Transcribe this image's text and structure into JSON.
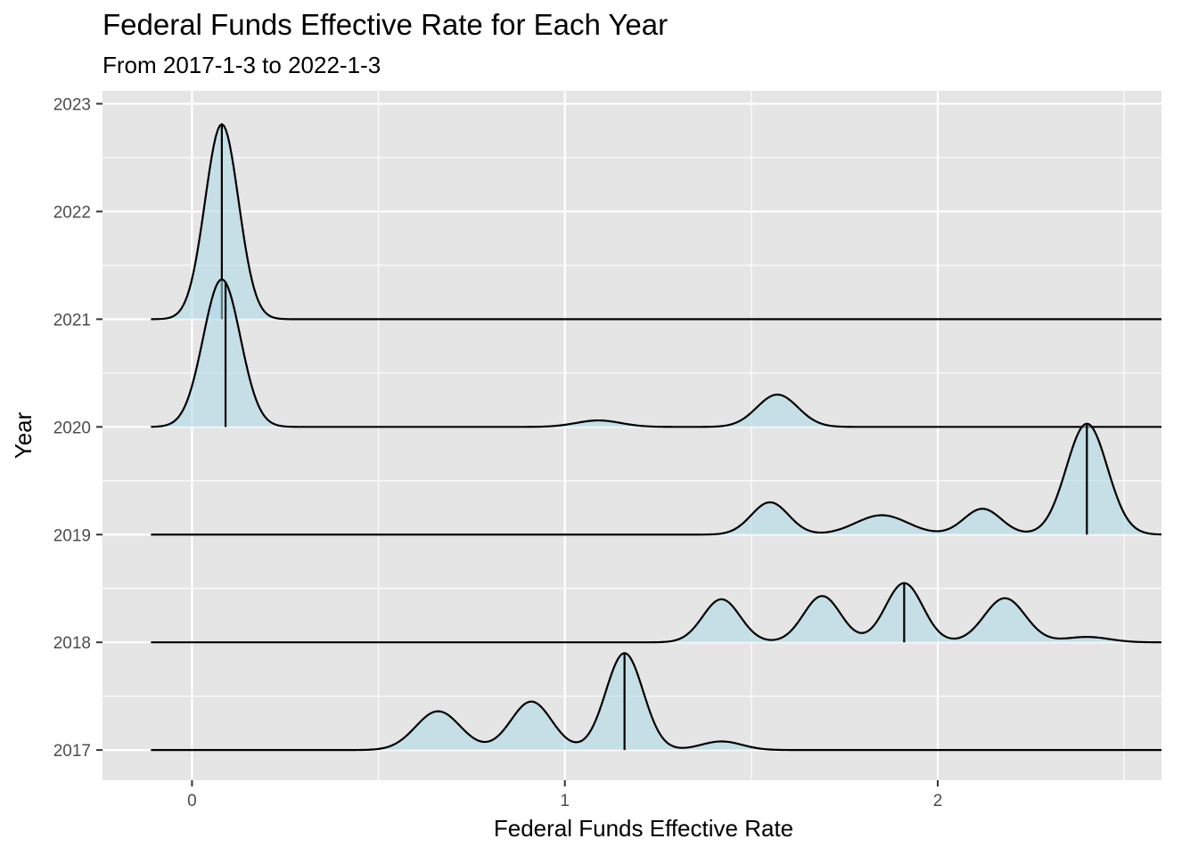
{
  "chart_data": {
    "type": "ridgeline",
    "title": "Federal Funds Effective Rate for Each Year",
    "subtitle": "From 2017-1-3 to 2022-1-3",
    "xlabel": "Federal Funds Effective Rate",
    "ylabel": "Year",
    "xlim": [
      -0.24,
      2.6
    ],
    "ylim": [
      2016.72,
      2023.12
    ],
    "x_ticks": [
      0,
      1,
      2
    ],
    "x_tick_labels": [
      "0",
      "1",
      "2"
    ],
    "y_ticks": [
      2017,
      2018,
      2019,
      2020,
      2021,
      2022,
      2023
    ],
    "y_tick_labels": [
      "2017",
      "2018",
      "2019",
      "2020",
      "2021",
      "2022",
      "2023"
    ],
    "x_range": [
      -0.11,
      2.6
    ],
    "grid": true,
    "colors": {
      "panel": "#e5e5e5",
      "grid": "#ffffff",
      "fill": "#add8e6",
      "line": "#000000",
      "tick_label": "#4d4d4d"
    },
    "series": [
      {
        "baseline": 2017,
        "median": 1.16,
        "peaks": [
          [
            0.66,
            0.36,
            0.06
          ],
          [
            0.91,
            0.45,
            0.055
          ],
          [
            1.16,
            0.9,
            0.05
          ],
          [
            1.42,
            0.08,
            0.055
          ]
        ]
      },
      {
        "baseline": 2018,
        "median": 1.91,
        "peaks": [
          [
            1.42,
            0.4,
            0.05
          ],
          [
            1.69,
            0.43,
            0.05
          ],
          [
            1.91,
            0.55,
            0.05
          ],
          [
            2.18,
            0.41,
            0.055
          ],
          [
            2.4,
            0.05,
            0.06
          ]
        ]
      },
      {
        "baseline": 2019,
        "median": 2.4,
        "peaks": [
          [
            1.55,
            0.3,
            0.05
          ],
          [
            1.85,
            0.18,
            0.07
          ],
          [
            2.12,
            0.24,
            0.05
          ],
          [
            2.4,
            1.03,
            0.055
          ]
        ]
      },
      {
        "baseline": 2020,
        "median": 0.09,
        "peaks": [
          [
            0.08,
            1.37,
            0.05
          ],
          [
            1.09,
            0.06,
            0.06
          ],
          [
            1.57,
            0.3,
            0.055
          ]
        ]
      },
      {
        "baseline": 2021,
        "median": 0.08,
        "peaks": [
          [
            0.08,
            1.81,
            0.045
          ]
        ]
      }
    ]
  }
}
